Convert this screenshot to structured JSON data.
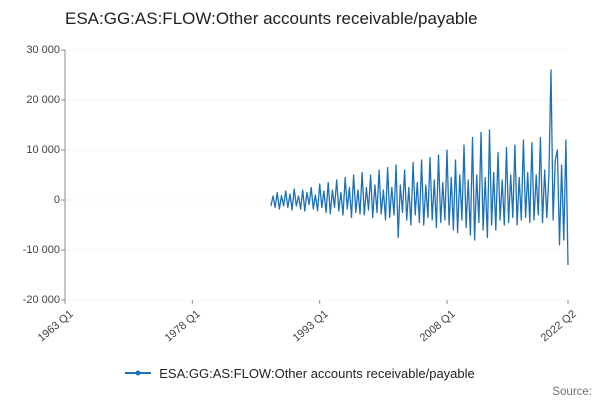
{
  "page": {
    "title": "ESA:GG:AS:FLOW:Other accounts receivable/payable",
    "source_label": "Source:"
  },
  "legend": {
    "label": "ESA:GG:AS:FLOW:Other accounts receivable/payable"
  },
  "colors": {
    "series": "#1d70b8",
    "grid": "#d9d9d9",
    "axis": "#8c8c8c",
    "title_text": "#222222",
    "tick_text": "#414042",
    "source_text": "#707070"
  },
  "chart_data": {
    "type": "line",
    "title": "ESA:GG:AS:FLOW:Other accounts receivable/payable",
    "legend_position": "bottom",
    "grid": true,
    "x_axis": {
      "range_start": "1963 Q1",
      "range_end": "2022 Q2",
      "tick_labels": [
        "1963 Q1",
        "1978 Q1",
        "1993 Q1",
        "2008 Q1",
        "2022 Q2"
      ]
    },
    "y_axis": {
      "range": [
        -20000,
        30000
      ],
      "ticks": [
        30000,
        20000,
        10000,
        0,
        -10000,
        -20000
      ],
      "tick_labels": [
        "30 000",
        "20 000",
        "10 000",
        "0",
        "-10 000",
        "-20 000"
      ]
    },
    "series": [
      {
        "name": "ESA:GG:AS:FLOW:Other accounts receivable/payable",
        "frequency": "quarterly",
        "start": "1987 Q2",
        "end": "2022 Q2",
        "values": [
          -1200,
          800,
          -1500,
          1500,
          -1800,
          900,
          -1200,
          1800,
          -1500,
          1200,
          -2000,
          2200,
          -1200,
          800,
          -1800,
          2000,
          -2200,
          1500,
          -900,
          2500,
          -1800,
          1000,
          -2200,
          3200,
          -1500,
          1800,
          -2500,
          3500,
          -2800,
          2000,
          -1500,
          4000,
          -2200,
          1500,
          -3000,
          4500,
          -1800,
          2500,
          -3500,
          5000,
          -2500,
          2000,
          -2800,
          5500,
          -3000,
          2500,
          -2000,
          5000,
          -3500,
          3000,
          -2500,
          6000,
          -2800,
          2000,
          -4000,
          6500,
          -3500,
          2500,
          -3000,
          7000,
          -7500,
          3000,
          -2500,
          6000,
          -4000,
          2500,
          -5000,
          7500,
          -3000,
          3500,
          -4500,
          8000,
          -5000,
          3000,
          -3500,
          8500,
          -4000,
          4000,
          -5500,
          9000,
          -4500,
          3500,
          -4000,
          10000,
          -5000,
          4500,
          -6000,
          8000,
          -6500,
          5000,
          -4000,
          11000,
          -5500,
          4000,
          -7000,
          12500,
          -8000,
          5000,
          -4500,
          13500,
          -6000,
          4500,
          -7500,
          14000,
          -5000,
          5500,
          -6000,
          9500,
          -4000,
          4000,
          -5000,
          10500,
          -4500,
          5000,
          -3500,
          11000,
          -5000,
          4500,
          -4000,
          12000,
          -3500,
          5500,
          -4500,
          11500,
          -4000,
          5000,
          -3000,
          12500,
          -4500,
          6000,
          -3500,
          5000,
          26000,
          -4000,
          8000,
          10000,
          -9000,
          7000,
          -8000,
          12000,
          -13000
        ]
      }
    ]
  }
}
